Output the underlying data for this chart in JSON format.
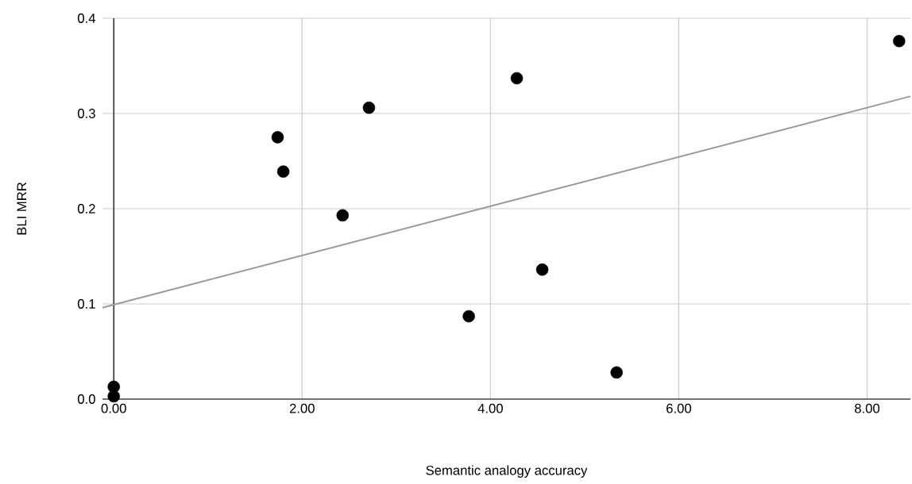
{
  "chart_data": {
    "type": "scatter",
    "xlabel": "Semantic analogy accuracy",
    "ylabel": "BLI MRR",
    "series": [
      {
        "color": "#000000",
        "marker": "circle",
        "x": [
          0,
          0,
          1.74,
          1.8,
          2.43,
          2.71,
          3.77,
          4.28,
          4.55,
          5.34,
          8.34
        ],
        "values": [
          0.013,
          0.003,
          0.275,
          0.239,
          0.193,
          0.306,
          0.087,
          0.337,
          0.136,
          0.028,
          0.376
        ]
      },
      {
        "type": "line",
        "color": "#999999",
        "marker": "none",
        "line_style": "solid",
        "x": [
          -0.12,
          8.46
        ],
        "values": [
          0.096,
          0.318
        ]
      }
    ],
    "xlim": [
      -0.12,
      8.46
    ],
    "ylim": [
      0,
      0.4
    ],
    "xticks": [
      {
        "value": 0,
        "label": "0.00"
      },
      {
        "value": 2,
        "label": "2.00"
      },
      {
        "value": 4,
        "label": "4.00"
      },
      {
        "value": 6,
        "label": "6.00"
      },
      {
        "value": 8,
        "label": "8.00"
      }
    ],
    "yticks": [
      {
        "value": 0,
        "label": "0.0"
      },
      0.1,
      0.2,
      0.3,
      0.4
    ],
    "grid": true
  }
}
